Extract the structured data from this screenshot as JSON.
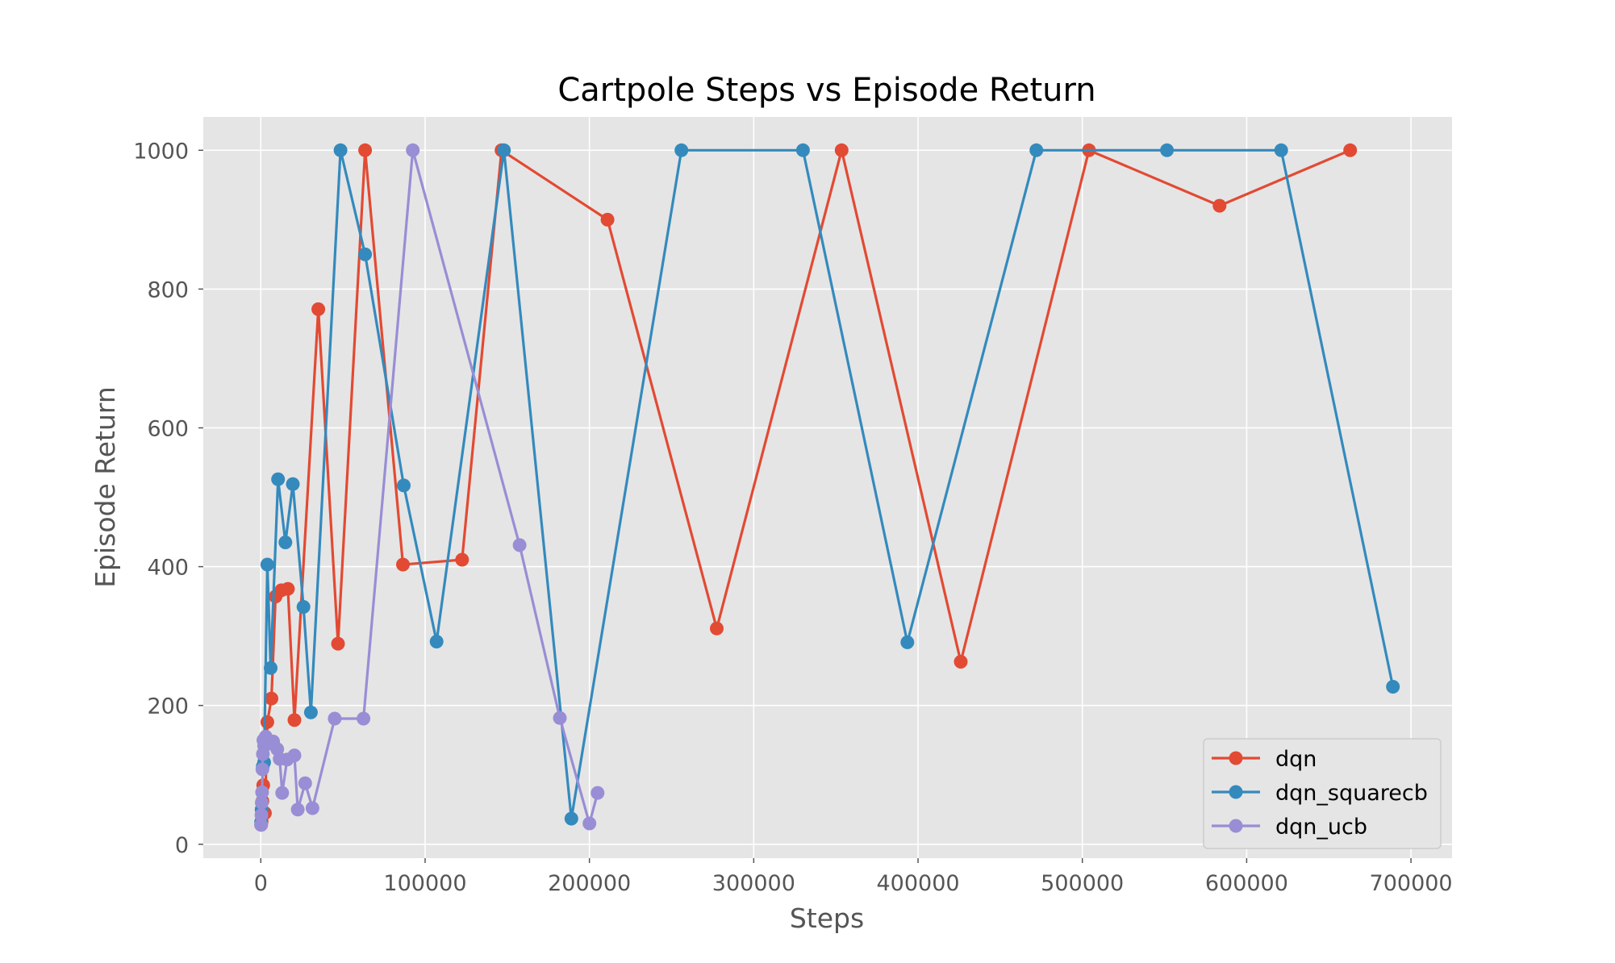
{
  "chart_data": {
    "type": "line",
    "title": "Cartpole Steps vs Episode Return",
    "xlabel": "Steps",
    "ylabel": "Episode Return",
    "xlim": [
      -35000,
      725000
    ],
    "ylim": [
      -20,
      1048
    ],
    "xticks": [
      0,
      100000,
      200000,
      300000,
      400000,
      500000,
      600000,
      700000
    ],
    "xtick_labels": [
      "0",
      "100000",
      "200000",
      "300000",
      "400000",
      "500000",
      "600000",
      "700000"
    ],
    "yticks": [
      0,
      200,
      400,
      600,
      800,
      1000
    ],
    "ytick_labels": [
      "0",
      "200",
      "400",
      "600",
      "800",
      "1000"
    ],
    "grid": true,
    "legend_position": "lower-right",
    "series": [
      {
        "name": "dqn",
        "color": "#E24A33",
        "x": [
          200,
          500,
          1000,
          1500,
          2500,
          4000,
          6500,
          9000,
          12500,
          16500,
          20500,
          35000,
          47000,
          63500,
          86500,
          122500,
          146500,
          211000,
          277500,
          353500,
          426000,
          504000,
          583500,
          663000
        ],
        "y": [
          28,
          33,
          62,
          85,
          45,
          176,
          210,
          357,
          366,
          368,
          179,
          771,
          289,
          1000,
          403,
          410,
          1000,
          900,
          311,
          1000,
          263,
          1000,
          920,
          1000
        ]
      },
      {
        "name": "dqn_squarecb",
        "color": "#348ABD",
        "x": [
          200,
          500,
          1200,
          2000,
          4000,
          6000,
          10500,
          15000,
          19500,
          26000,
          30500,
          48500,
          63500,
          87000,
          107000,
          148000,
          189000,
          256000,
          330000,
          393500,
          472000,
          551500,
          621000,
          689000
        ],
        "y": [
          32,
          50,
          112,
          118,
          403,
          254,
          526,
          435,
          519,
          342,
          190,
          1000,
          850,
          517,
          292,
          1000,
          37,
          1000,
          1000,
          291,
          1000,
          1000,
          1000,
          227
        ]
      },
      {
        "name": "dqn_ucb",
        "color": "#988ED5",
        "x": [
          200,
          400,
          600,
          800,
          1000,
          1300,
          1600,
          2000,
          3000,
          5000,
          7500,
          10000,
          11500,
          13000,
          16000,
          20500,
          22500,
          27000,
          31500,
          45000,
          62500,
          92500,
          157500,
          182000,
          200000,
          205000
        ],
        "y": [
          28,
          42,
          60,
          75,
          108,
          130,
          150,
          142,
          155,
          145,
          148,
          137,
          123,
          74,
          122,
          128,
          50,
          88,
          52,
          181,
          181,
          1000,
          431,
          182,
          30,
          74
        ]
      }
    ]
  }
}
